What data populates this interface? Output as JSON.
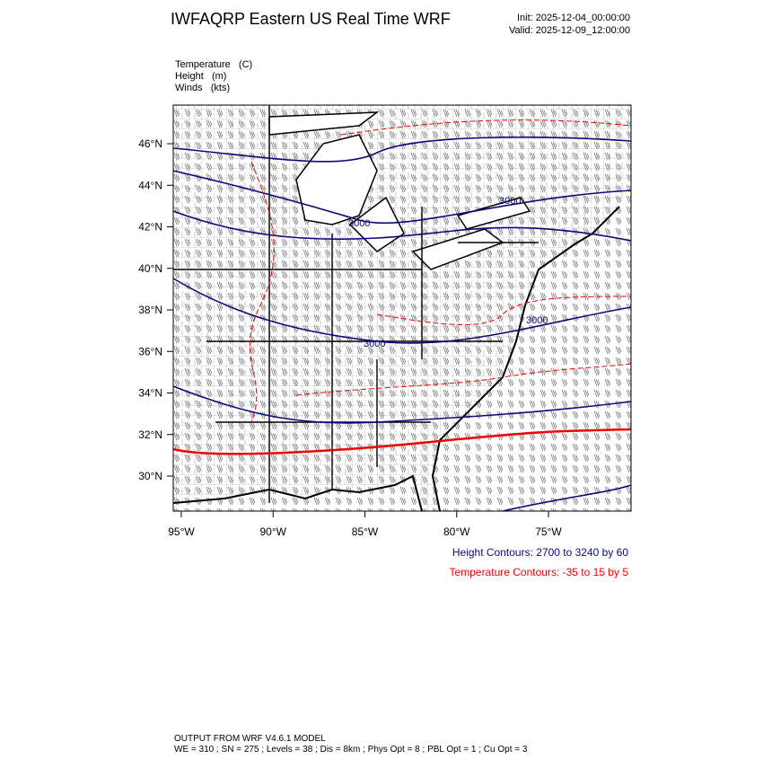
{
  "header": {
    "title": "IWFAQRP Eastern US Real Time WRF",
    "init": "Init: 2025-12-04_00:00:00",
    "valid": "Valid: 2025-12-09_12:00:00"
  },
  "fields": [
    "Temperature   (C)",
    "Height   (m)",
    "Winds   (kts)"
  ],
  "map": {
    "lat_labels": [
      "46°N",
      "44°N",
      "42°N",
      "40°N",
      "38°N",
      "36°N",
      "34°N",
      "32°N",
      "30°N"
    ],
    "lon_labels": [
      "95°W",
      "90°W",
      "85°W",
      "80°W",
      "75°W"
    ],
    "contour_labels": [
      "3000",
      "3000",
      "3000",
      "3000"
    ]
  },
  "legend": {
    "height": "Height Contours: 2700 to 3240 by 60",
    "temperature": "Temperature Contours: -35 to 15 by 5"
  },
  "footer": {
    "model": "OUTPUT FROM WRF V4.6.1 MODEL",
    "config": "WE = 310 ; SN = 275 ; Levels = 38 ; Dis = 8km ; Phys Opt = 8 ; PBL Opt = 1 ; Cu Opt = 3"
  }
}
